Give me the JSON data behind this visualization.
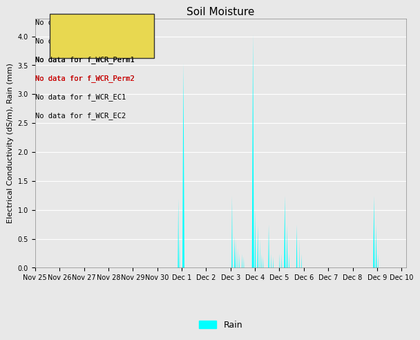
{
  "title": "Soil Moisture",
  "ylabel": "Electrical Conductivity (dS/m), Rain (mm)",
  "background_color": "#e8e8e8",
  "plot_bg_color": "#e8e8e8",
  "rain_color": "#00ffff",
  "ylim": [
    0.0,
    4.3
  ],
  "yticks": [
    0.0,
    0.5,
    1.0,
    1.5,
    2.0,
    2.5,
    3.0,
    3.5,
    4.0
  ],
  "no_data_labels": [
    "No data for f_WCR_VMC1",
    "No data for f_WCR_VWC2",
    "No data for f_WCR_Perm1",
    "No data for f_WCR_Perm2",
    "No data for f_WCR_EC1",
    "No data for f_WCR_EC2"
  ],
  "legend_label": "Rain",
  "title_fontsize": 11,
  "axis_fontsize": 8,
  "tick_fontsize": 7,
  "x_tick_labels": [
    "Nov 25",
    "Nov 26",
    "Nov 27",
    "Nov 28",
    "Nov 29",
    "Nov 30",
    "Dec 1",
    "Dec 2",
    "Dec 3",
    "Dec 4",
    "Dec 5",
    "Dec 6",
    "Dec 7",
    "Dec 8",
    "Dec 9",
    "Dec 10"
  ],
  "x_tick_positions": [
    0,
    1,
    2,
    3,
    4,
    5,
    6,
    7,
    8,
    9,
    10,
    11,
    12,
    13,
    14,
    15
  ],
  "xlim": [
    0,
    15.2
  ]
}
